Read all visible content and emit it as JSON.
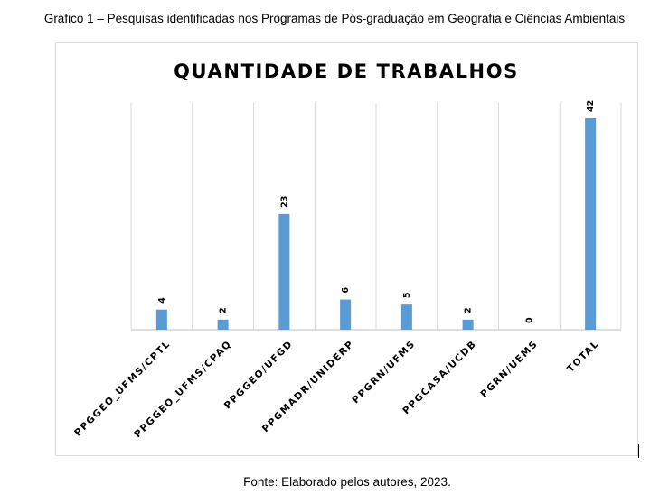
{
  "caption": "Gráfico 1 – Pesquisas identificadas nos Programas de Pós-graduação em Geografia e Ciências Ambientais",
  "source": "Fonte: Elaborado pelos autores, 2023.",
  "chart_data": {
    "type": "bar",
    "title": "QUANTIDADE DE TRABALHOS",
    "categories": [
      "PPGGEO_UFMS/CPTL",
      "PPGGEO_UFMS/CPAQ",
      "PPGGEO/UFGD",
      "PPGMADR/UNIDERP",
      "PPGRN/UFMS",
      "PPGCASA/UCDB",
      "PGRN/UEMS",
      "TOTAL"
    ],
    "values": [
      4,
      2,
      23,
      6,
      5,
      2,
      0,
      42
    ],
    "ylim": [
      0,
      42
    ],
    "grid": "vertical",
    "legend": "none",
    "bar_color": "#5b9bd5"
  }
}
